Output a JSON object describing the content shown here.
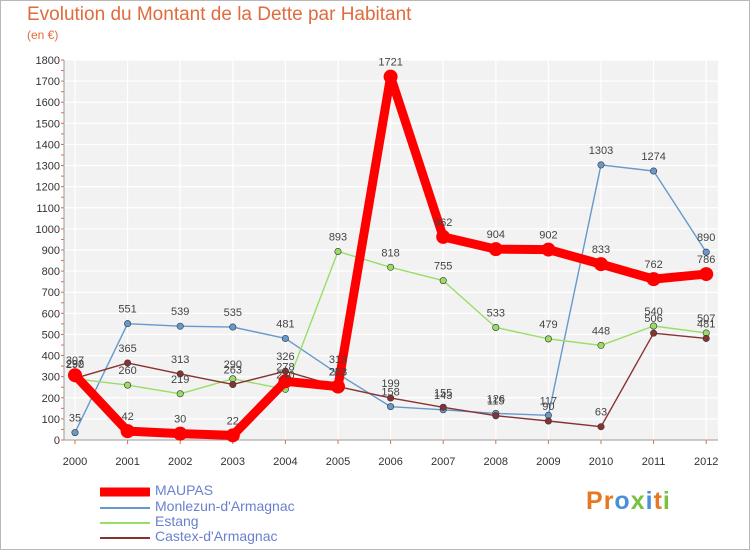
{
  "title": "Evolution du Montant de la Dette par Habitant",
  "unit": "(en €)",
  "logo": {
    "text": "Proxiti",
    "colors": [
      "#e87722",
      "#e87722",
      "#4a90d9",
      "#7ac143",
      "#4a90d9",
      "#e87722",
      "#7ac143"
    ]
  },
  "chart_data": {
    "type": "line",
    "title": "Evolution du Montant de la Dette par Habitant",
    "ylabel": "(en €)",
    "xlabel": "",
    "x": [
      "2000",
      "2001",
      "2002",
      "2003",
      "2004",
      "2005",
      "2006",
      "2007",
      "2008",
      "2009",
      "2010",
      "2011",
      "2012"
    ],
    "ylim": [
      0,
      1800
    ],
    "yticks": [
      0,
      100,
      200,
      300,
      400,
      500,
      600,
      700,
      800,
      900,
      1000,
      1100,
      1200,
      1300,
      1400,
      1500,
      1600,
      1700,
      1800
    ],
    "grid": true,
    "legend_position": "bottom-left",
    "series": [
      {
        "name": "MAUPAS",
        "color": "#ff0000",
        "values": [
          307,
          42,
          30,
          22,
          278,
          253,
          1721,
          962,
          904,
          902,
          833,
          762,
          786
        ],
        "labels": [
          "307",
          "42",
          "30",
          "22",
          "278",
          "253",
          "1721",
          "962",
          "904",
          "902",
          "833",
          "762",
          "786"
        ]
      },
      {
        "name": "Monlezun-d'Armagnac",
        "color": "#6699cc",
        "values": [
          35,
          551,
          539,
          535,
          481,
          313,
          158,
          143,
          126,
          117,
          1303,
          1274,
          890
        ],
        "labels": [
          "35",
          "551",
          "539",
          "535",
          "481",
          "313",
          "158",
          "143",
          "126",
          "117",
          "1303",
          "1274",
          "890"
        ]
      },
      {
        "name": "Estang",
        "color": "#99dd66",
        "values": [
          290,
          260,
          219,
          290,
          240,
          893,
          818,
          755,
          533,
          479,
          448,
          540,
          507
        ],
        "labels": [
          "290",
          "260",
          "219",
          "290",
          "240",
          "893",
          "818",
          "755",
          "533",
          "479",
          "448",
          "540",
          "507"
        ]
      },
      {
        "name": "Castex-d'Armagnac",
        "color": "#883333",
        "values": [
          292,
          365,
          313,
          263,
          326,
          253,
          199,
          155,
          115,
          90,
          63,
          506,
          481
        ],
        "labels": [
          "292",
          "365",
          "313",
          "263",
          "326",
          "253",
          "199",
          "155",
          "115",
          "90",
          "63",
          "506",
          "481"
        ]
      }
    ]
  }
}
